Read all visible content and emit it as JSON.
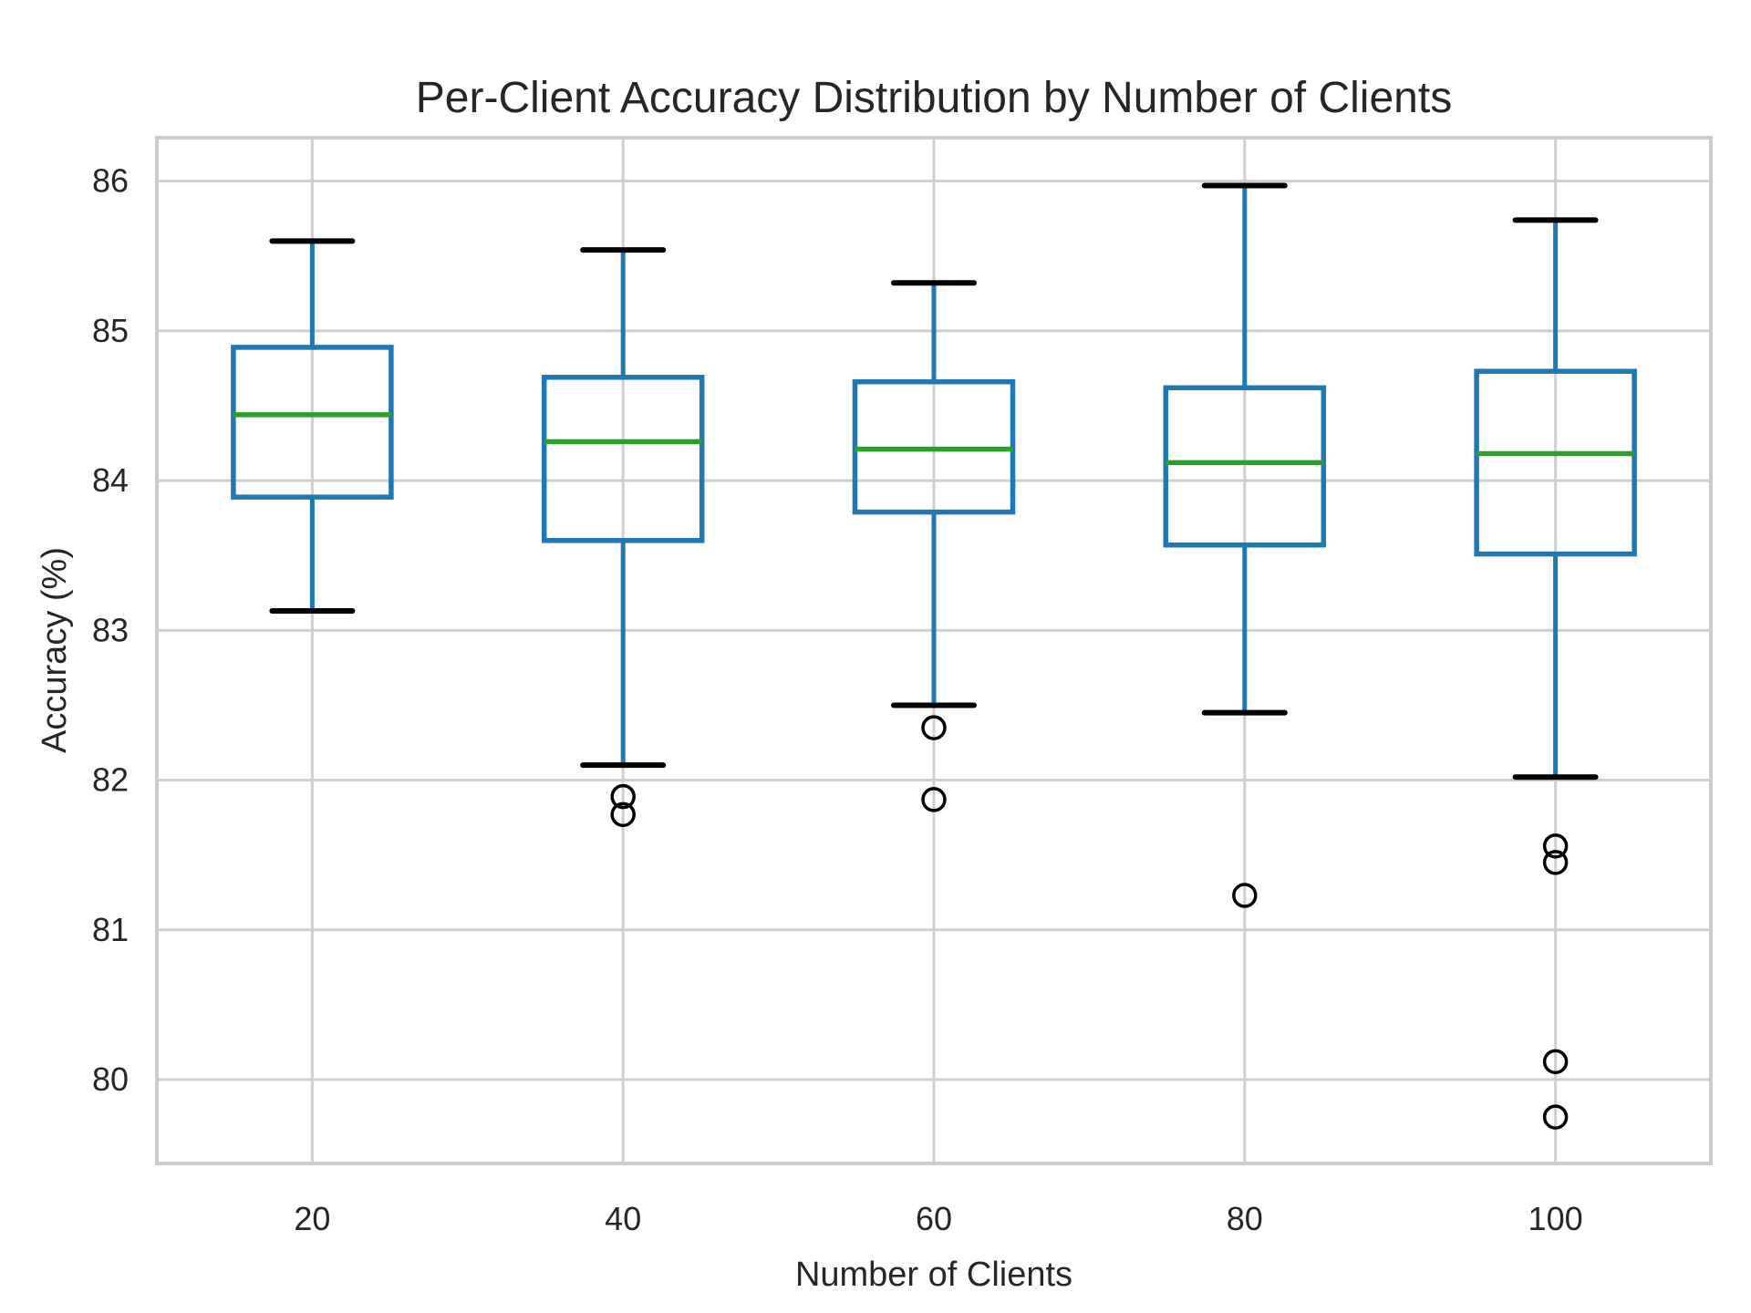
{
  "chart_data": {
    "type": "box",
    "title": "Per-Client Accuracy Distribution by Number of Clients",
    "xlabel": "Number of Clients",
    "ylabel": "Accuracy (%)",
    "categories": [
      "20",
      "40",
      "60",
      "80",
      "100"
    ],
    "y_ticks": [
      80,
      81,
      82,
      83,
      84,
      85,
      86
    ],
    "ylim": [
      79.44,
      86.29
    ],
    "grid": true,
    "legend": "none",
    "boxes": [
      {
        "category": "20",
        "whisker_low": 83.13,
        "q1": 83.89,
        "median": 84.44,
        "q3": 84.89,
        "whisker_high": 85.6,
        "outliers": []
      },
      {
        "category": "40",
        "whisker_low": 82.1,
        "q1": 83.6,
        "median": 84.26,
        "q3": 84.69,
        "whisker_high": 85.54,
        "outliers": [
          81.89,
          81.77
        ]
      },
      {
        "category": "60",
        "whisker_low": 82.5,
        "q1": 83.79,
        "median": 84.21,
        "q3": 84.66,
        "whisker_high": 85.32,
        "outliers": [
          82.35,
          81.87
        ]
      },
      {
        "category": "80",
        "whisker_low": 82.45,
        "q1": 83.57,
        "median": 84.12,
        "q3": 84.62,
        "whisker_high": 85.97,
        "outliers": [
          81.23
        ]
      },
      {
        "category": "100",
        "whisker_low": 82.02,
        "q1": 83.51,
        "median": 84.18,
        "q3": 84.73,
        "whisker_high": 85.74,
        "outliers": [
          81.56,
          81.45,
          80.12,
          79.75
        ]
      }
    ],
    "colors": {
      "box": "#1f77b4",
      "whisker": "#1f77b4",
      "cap": "#000000",
      "median": "#2ca02c",
      "outlier": "#000000",
      "grid": "#cfcfcf",
      "spine": "#cccccc",
      "text": "#262626",
      "background": "#ffffff"
    }
  }
}
